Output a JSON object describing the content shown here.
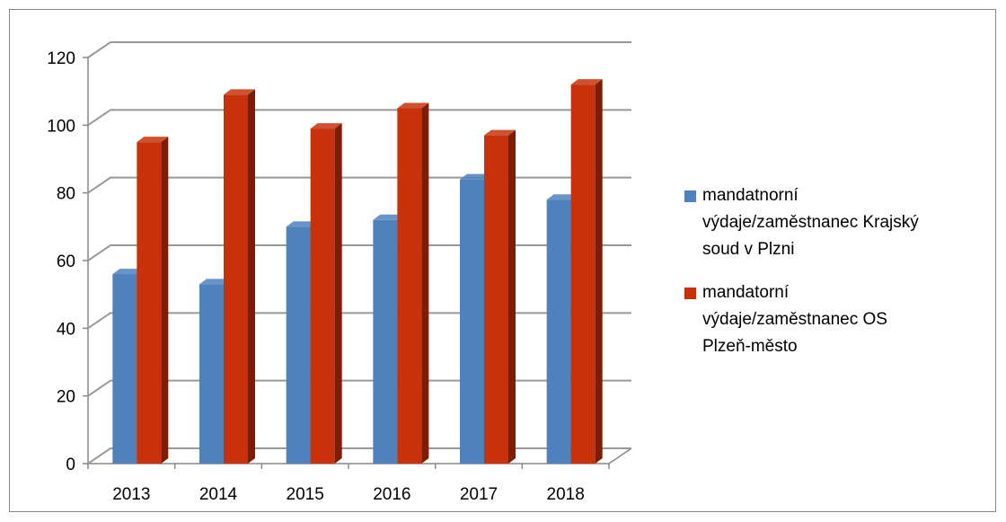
{
  "chart_data": {
    "type": "bar3d",
    "categories": [
      "2013",
      "2014",
      "2015",
      "2016",
      "2017",
      "2018"
    ],
    "series": [
      {
        "name": "mandatnorní výdaje/zaměstnanec Krajský soud v Plzni",
        "color": "#4f81bd",
        "side": "#2f5a8c",
        "values": [
          56,
          53,
          70,
          72,
          84,
          78
        ]
      },
      {
        "name": "mandatorní výdaje/zaměstnanec OS Plzeň-město",
        "color": "#c8320a",
        "side": "#7e1d05",
        "values": [
          95,
          109,
          99,
          105,
          97,
          112
        ]
      }
    ],
    "ylim": [
      0,
      120
    ],
    "yticks": [
      0,
      20,
      40,
      60,
      80,
      100,
      120
    ],
    "grid": true,
    "legend": "right"
  }
}
